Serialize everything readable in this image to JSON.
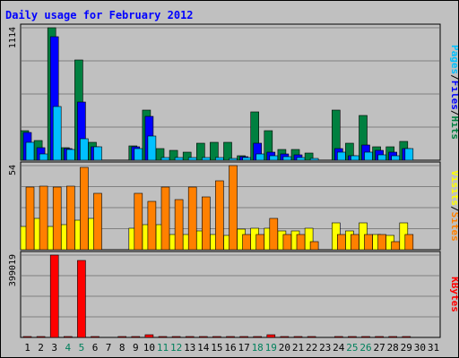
{
  "chart_data": {
    "type": "bar",
    "title": "Daily usage for February 2012",
    "days": [
      "1",
      "2",
      "3",
      "4",
      "5",
      "6",
      "7",
      "8",
      "9",
      "10",
      "11",
      "12",
      "13",
      "14",
      "15",
      "16",
      "17",
      "18",
      "19",
      "20",
      "21",
      "22",
      "23",
      "24",
      "25",
      "26",
      "27",
      "28",
      "29",
      "30",
      "31"
    ],
    "weekend_days": [
      "4",
      "5",
      "11",
      "12",
      "18",
      "19",
      "25",
      "26"
    ],
    "panels": [
      {
        "id": "hits",
        "max_label": "1114",
        "ymax": 1114,
        "grid": true,
        "axis_label": [
          {
            "text": "Pages",
            "color": "#00c0ff"
          },
          {
            "text": "/",
            "color": "#000000"
          },
          {
            "text": "Files",
            "color": "#0000ff"
          },
          {
            "text": "/",
            "color": "#000000"
          },
          {
            "text": "Hits",
            "color": "#008040"
          }
        ],
        "series": [
          {
            "name": "Hits",
            "color": "#008040",
            "values": [
              248,
              165,
              1114,
              105,
              845,
              150,
              0,
              0,
              120,
              420,
              95,
              80,
              65,
              140,
              150,
              150,
              40,
              405,
              245,
              90,
              90,
              60,
              0,
              420,
              140,
              380,
              115,
              110,
              155,
              0,
              0
            ]
          },
          {
            "name": "Files",
            "color": "#0000ff",
            "values": [
              230,
              105,
              1040,
              100,
              490,
              115,
              0,
              0,
              110,
              370,
              0,
              0,
              0,
              0,
              0,
              0,
              30,
              140,
              70,
              55,
              45,
              0,
              0,
              100,
              40,
              130,
              80,
              65,
              100,
              0,
              0
            ]
          },
          {
            "name": "Pages",
            "color": "#00c0ff",
            "values": [
              150,
              50,
              450,
              90,
              180,
              110,
              0,
              0,
              100,
              200,
              25,
              25,
              20,
              25,
              20,
              15,
              20,
              50,
              40,
              30,
              25,
              15,
              0,
              70,
              35,
              70,
              45,
              40,
              95,
              0,
              0
            ]
          }
        ]
      },
      {
        "id": "visits",
        "max_label": "54",
        "ymax": 54,
        "grid": true,
        "axis_label": [
          {
            "text": "Visits",
            "color": "#ffff00"
          },
          {
            "text": "/",
            "color": "#000000"
          },
          {
            "text": "Sites",
            "color": "#ff8000"
          }
        ],
        "series": [
          {
            "name": "Visits",
            "color": "#ffff00",
            "values": [
              15,
              20,
              15,
              16,
              19,
              20,
              0,
              0,
              14,
              16,
              16,
              10,
              10,
              12,
              10,
              9,
              13,
              14,
              14,
              12,
              12,
              14,
              0,
              17,
              12,
              17,
              10,
              9,
              17,
              0,
              0
            ]
          },
          {
            "name": "Sites",
            "color": "#ff8000",
            "values": [
              40,
              41,
              40,
              41,
              53,
              36,
              0,
              0,
              36,
              31,
              40,
              32,
              40,
              34,
              44,
              54,
              10,
              10,
              20,
              10,
              10,
              5,
              0,
              10,
              10,
              10,
              10,
              5,
              10,
              0,
              0
            ]
          }
        ]
      },
      {
        "id": "kbytes",
        "max_label": "399019",
        "ymax": 399019,
        "grid": true,
        "axis_label": [
          {
            "text": "KBytes",
            "color": "#ff0000"
          }
        ],
        "series": [
          {
            "name": "KBytes",
            "color": "#ff0000",
            "values": [
              2000,
              2000,
              399019,
              2000,
              375000,
              2000,
              0,
              2000,
              2000,
              15000,
              2000,
              2000,
              2000,
              2000,
              2000,
              2000,
              2000,
              6000,
              15000,
              2000,
              2000,
              2000,
              0,
              5000,
              2000,
              2000,
              2000,
              2000,
              2000,
              0,
              0
            ]
          }
        ]
      }
    ]
  }
}
